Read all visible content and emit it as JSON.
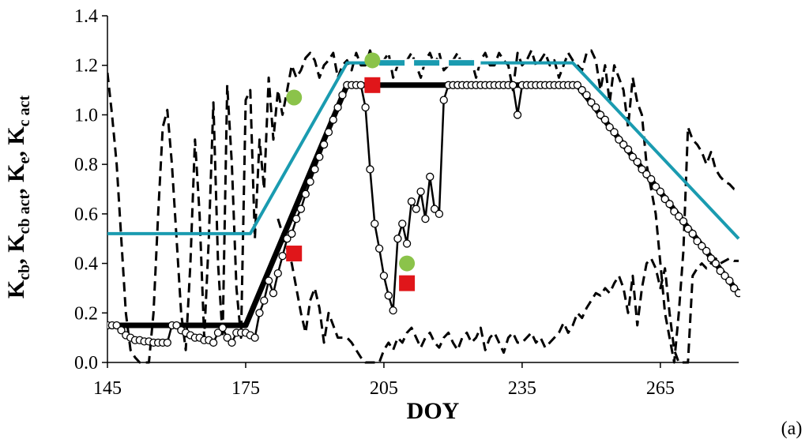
{
  "chart_data": {
    "type": "line",
    "panel_label": "(a)",
    "xlabel": "DOY",
    "ylabel": {
      "parts": [
        {
          "base": "K",
          "sub": "cb"
        },
        {
          "sep": ", "
        },
        {
          "base": "K",
          "sub": "cb act"
        },
        {
          "sep": ", "
        },
        {
          "base": "K",
          "sub": "e"
        },
        {
          "sep": ", "
        },
        {
          "base": "K",
          "sub": "c act"
        }
      ]
    },
    "xlim": [
      145,
      282
    ],
    "ylim": [
      0,
      1.4
    ],
    "xticks": [
      145,
      175,
      205,
      235,
      265
    ],
    "xtick_labels": [
      "145",
      "175",
      "205",
      "235",
      "265"
    ],
    "yticks": [
      0,
      0.2,
      0.4,
      0.6,
      0.8,
      1.0,
      1.2,
      1.4
    ],
    "ytick_labels": [
      "0.0",
      "0.2",
      "0.4",
      "0.6",
      "0.8",
      "1.0",
      "1.2",
      "1.4"
    ],
    "grid": false,
    "colors": {
      "kcb_basal": "#000000",
      "kc_act_teal": "#1a9bb0",
      "green_points": "#8bc34a",
      "red_points": "#e0161a",
      "markers_edge": "#000000"
    },
    "series": [
      {
        "style": "thick-black-line",
        "x": [
          145,
          175,
          197,
          217,
          247,
          282
        ],
        "y": [
          0.15,
          0.15,
          1.12,
          1.12,
          1.12,
          0.28
        ]
      },
      {
        "style": "teal-line",
        "x": [
          145,
          176,
          197,
          246,
          282
        ],
        "y": [
          0.52,
          0.52,
          1.21,
          1.21,
          0.5
        ],
        "dashed_segment_x": [
          204,
          226
        ]
      },
      {
        "style": "black-line-open-circles",
        "x": [
          145,
          146,
          147,
          148,
          149,
          150,
          151,
          152,
          153,
          154,
          155,
          156,
          157,
          158,
          159,
          160,
          161,
          162,
          163,
          164,
          165,
          166,
          167,
          168,
          169,
          170,
          171,
          172,
          173,
          174,
          175,
          176,
          177,
          178,
          179,
          180,
          181,
          182,
          183,
          184,
          185,
          186,
          187,
          188,
          189,
          190,
          191,
          192,
          193,
          194,
          195,
          196,
          197,
          198,
          199,
          200,
          201,
          202,
          203,
          204,
          205,
          206,
          207,
          208,
          209,
          210,
          211,
          212,
          213,
          214,
          215,
          216,
          217,
          218,
          219,
          220,
          221,
          222,
          223,
          224,
          225,
          226,
          227,
          228,
          229,
          230,
          231,
          232,
          233,
          234,
          235,
          236,
          237,
          238,
          239,
          240,
          241,
          242,
          243,
          244,
          245,
          246,
          247,
          248,
          249,
          250,
          251,
          252,
          253,
          254,
          255,
          256,
          257,
          258,
          259,
          260,
          261,
          262,
          263,
          264,
          265,
          266,
          267,
          268,
          269,
          270,
          271,
          272,
          273,
          274,
          275,
          276,
          277,
          278,
          279,
          280,
          281,
          282
        ],
        "y": [
          0.15,
          0.15,
          0.15,
          0.13,
          0.11,
          0.1,
          0.09,
          0.09,
          0.085,
          0.085,
          0.08,
          0.08,
          0.08,
          0.08,
          0.15,
          0.15,
          0.13,
          0.12,
          0.11,
          0.1,
          0.1,
          0.09,
          0.09,
          0.08,
          0.12,
          0.14,
          0.1,
          0.08,
          0.12,
          0.12,
          0.12,
          0.11,
          0.1,
          0.2,
          0.25,
          0.33,
          0.28,
          0.36,
          0.43,
          0.5,
          0.52,
          0.58,
          0.62,
          0.68,
          0.73,
          0.78,
          0.83,
          0.88,
          0.93,
          0.98,
          1.03,
          1.08,
          1.12,
          1.12,
          1.12,
          1.12,
          1.03,
          0.78,
          0.56,
          0.46,
          0.35,
          0.27,
          0.21,
          0.5,
          0.56,
          0.48,
          0.65,
          0.62,
          0.69,
          0.58,
          0.75,
          0.62,
          0.6,
          1.06,
          1.12,
          1.12,
          1.12,
          1.12,
          1.12,
          1.12,
          1.12,
          1.12,
          1.12,
          1.12,
          1.12,
          1.12,
          1.12,
          1.12,
          1.12,
          1.0,
          1.12,
          1.12,
          1.12,
          1.12,
          1.12,
          1.12,
          1.12,
          1.12,
          1.12,
          1.12,
          1.12,
          1.12,
          1.12,
          1.1,
          1.08,
          1.05,
          1.03,
          1.0,
          0.98,
          0.95,
          0.93,
          0.9,
          0.88,
          0.86,
          0.83,
          0.81,
          0.78,
          0.76,
          0.74,
          0.71,
          0.69,
          0.66,
          0.64,
          0.61,
          0.59,
          0.57,
          0.54,
          0.52,
          0.49,
          0.47,
          0.45,
          0.42,
          0.4,
          0.37,
          0.35,
          0.33,
          0.3,
          0.28
        ]
      },
      {
        "style": "black-dashed-upper",
        "x": [
          145,
          146,
          147,
          148,
          149,
          150,
          151,
          152,
          153,
          154,
          155,
          156,
          157,
          158,
          159,
          160,
          161,
          162,
          163,
          164,
          165,
          166,
          167,
          168,
          169,
          170,
          171,
          172,
          173,
          174,
          175,
          176,
          177,
          178,
          179,
          180,
          181,
          182,
          183,
          184,
          185,
          186,
          187,
          188,
          189,
          190,
          191,
          192,
          193,
          194,
          195,
          196,
          197,
          198,
          199,
          200,
          201,
          202,
          203,
          204,
          205,
          206,
          207,
          208,
          209,
          210,
          211,
          212,
          213,
          214,
          215,
          216,
          217,
          218,
          219,
          220,
          221,
          222,
          223,
          224,
          225,
          226,
          227,
          228,
          229,
          230,
          231,
          232,
          233,
          234,
          235,
          236,
          237,
          238,
          239,
          240,
          241,
          242,
          243,
          244,
          245,
          246,
          247,
          248,
          249,
          250,
          251,
          252,
          253,
          254,
          255,
          256,
          257,
          258,
          259,
          260,
          261,
          262,
          263,
          264,
          265,
          266,
          267,
          268,
          269,
          270,
          271,
          272,
          273,
          274,
          275,
          276,
          277,
          278,
          279,
          280,
          281,
          282
        ],
        "y": [
          1.17,
          1.0,
          0.8,
          0.5,
          0.2,
          0.05,
          0.02,
          0.0,
          0.0,
          0.0,
          0.2,
          0.6,
          0.95,
          1.02,
          0.8,
          0.5,
          0.2,
          0.05,
          0.4,
          0.9,
          0.6,
          0.1,
          0.5,
          1.05,
          0.4,
          0.1,
          1.12,
          0.8,
          0.3,
          0.1,
          1.06,
          1.1,
          0.5,
          0.9,
          0.7,
          1.15,
          0.9,
          1.1,
          1.0,
          1.1,
          1.2,
          1.15,
          1.18,
          1.23,
          1.25,
          1.22,
          1.15,
          1.2,
          1.22,
          1.25,
          1.15,
          1.2,
          1.22,
          1.18,
          1.25,
          1.2,
          1.2,
          1.26,
          1.2,
          1.2,
          1.22,
          1.25,
          1.15,
          1.2,
          1.21,
          1.22,
          1.25,
          1.2,
          1.15,
          1.22,
          1.25,
          1.2,
          1.25,
          1.18,
          1.2,
          1.22,
          1.25,
          1.2,
          1.2,
          1.22,
          1.15,
          1.22,
          1.25,
          1.2,
          1.2,
          1.25,
          1.22,
          1.2,
          1.1,
          1.25,
          1.2,
          1.22,
          1.26,
          1.2,
          1.22,
          1.25,
          1.2,
          1.22,
          1.15,
          1.2,
          1.25,
          1.22,
          1.2,
          1.18,
          1.25,
          1.26,
          1.22,
          1.1,
          1.2,
          1.05,
          1.2,
          1.15,
          1.1,
          0.95,
          1.15,
          1.05,
          1.0,
          0.8,
          0.7,
          0.6,
          0.4,
          0.2,
          0.1,
          0.0,
          0.2,
          0.45,
          0.95,
          0.9,
          0.88,
          0.85,
          0.8,
          0.85,
          0.78,
          0.75,
          0.73,
          0.72,
          0.7,
          0.7
        ]
      },
      {
        "style": "black-dashed-lower",
        "x": [
          182,
          183,
          184,
          185,
          186,
          187,
          188,
          189,
          190,
          191,
          192,
          193,
          194,
          195,
          196,
          197,
          198,
          199,
          200,
          201,
          202,
          203,
          204,
          205,
          206,
          207,
          208,
          209,
          210,
          211,
          212,
          213,
          214,
          215,
          216,
          217,
          218,
          219,
          220,
          221,
          222,
          223,
          224,
          225,
          226,
          227,
          228,
          229,
          230,
          231,
          232,
          233,
          234,
          235,
          236,
          237,
          238,
          239,
          240,
          241,
          242,
          243,
          244,
          245,
          246,
          247,
          248,
          249,
          250,
          251,
          252,
          253,
          254,
          255,
          256,
          257,
          258,
          259,
          260,
          261,
          262,
          263,
          264,
          265,
          266,
          267,
          268,
          269,
          270,
          271,
          272,
          273,
          274,
          275,
          276,
          277,
          278,
          279,
          280,
          281,
          282
        ],
        "y": [
          0.58,
          0.52,
          0.46,
          0.4,
          0.3,
          0.2,
          0.12,
          0.25,
          0.3,
          0.22,
          0.08,
          0.2,
          0.15,
          0.1,
          0.1,
          0.1,
          0.08,
          0.05,
          0.02,
          0.0,
          0.0,
          0.0,
          0.0,
          0.05,
          0.08,
          0.05,
          0.1,
          0.08,
          0.12,
          0.14,
          0.1,
          0.06,
          0.1,
          0.12,
          0.08,
          0.06,
          0.1,
          0.12,
          0.08,
          0.05,
          0.1,
          0.12,
          0.08,
          0.1,
          0.14,
          0.05,
          0.1,
          0.12,
          0.08,
          0.04,
          0.1,
          0.12,
          0.08,
          0.08,
          0.1,
          0.12,
          0.08,
          0.1,
          0.06,
          0.08,
          0.1,
          0.12,
          0.16,
          0.12,
          0.15,
          0.2,
          0.18,
          0.22,
          0.25,
          0.28,
          0.27,
          0.3,
          0.28,
          0.32,
          0.35,
          0.3,
          0.2,
          0.35,
          0.15,
          0.3,
          0.4,
          0.42,
          0.38,
          0.3,
          0.38,
          0.2,
          0.05,
          0.0,
          0.0,
          0.0,
          0.35,
          0.38,
          0.4,
          0.38,
          0.4,
          0.42,
          0.4,
          0.41,
          0.42,
          0.41,
          0.41
        ]
      }
    ],
    "markers": [
      {
        "style": "green-circle",
        "x": [
          185.5,
          202.5,
          210
        ],
        "y": [
          1.07,
          1.22,
          0.4
        ]
      },
      {
        "style": "red-square",
        "x": [
          185.5,
          202.5,
          210
        ],
        "y": [
          0.44,
          1.12,
          0.32
        ]
      }
    ]
  }
}
